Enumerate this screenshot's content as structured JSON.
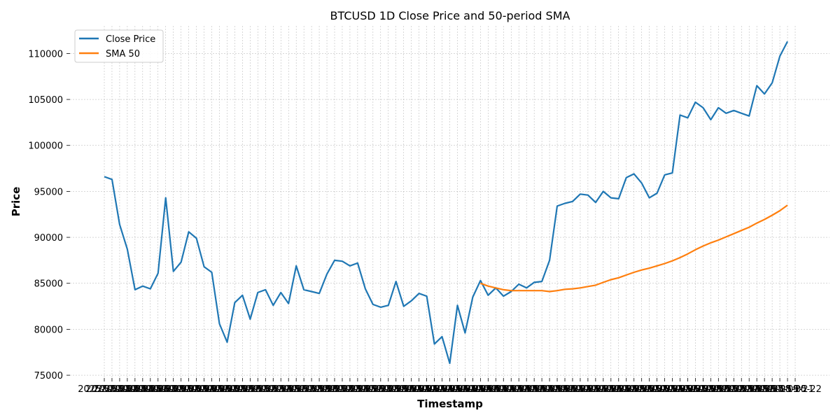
{
  "chart_data": {
    "type": "line",
    "title": "BTCUSD 1D Close Price and 50-period SMA",
    "xlabel": "Timestamp",
    "ylabel": "Price",
    "ylim": [
      74700,
      113000
    ],
    "yticks": [
      75000,
      80000,
      85000,
      90000,
      95000,
      100000,
      105000,
      110000
    ],
    "grid": true,
    "legend_position": "top-left",
    "colors": {
      "close": "#1f77b4",
      "sma": "#ff7f0e",
      "grid": "#b0b0b0"
    },
    "x": [
      "2025-02-21",
      "2025-02-22",
      "2025-02-23",
      "2025-02-24",
      "2025-02-25",
      "2025-02-26",
      "2025-02-27",
      "2025-02-28",
      "2025-03-01",
      "2025-03-02",
      "2025-03-03",
      "2025-03-04",
      "2025-03-05",
      "2025-03-06",
      "2025-03-07",
      "2025-03-08",
      "2025-03-09",
      "2025-03-10",
      "2025-03-11",
      "2025-03-12",
      "2025-03-13",
      "2025-03-14",
      "2025-03-15",
      "2025-03-16",
      "2025-03-17",
      "2025-03-18",
      "2025-03-19",
      "2025-03-20",
      "2025-03-21",
      "2025-03-22",
      "2025-03-23",
      "2025-03-24",
      "2025-03-25",
      "2025-03-26",
      "2025-03-27",
      "2025-03-28",
      "2025-03-29",
      "2025-03-30",
      "2025-03-31",
      "2025-04-01",
      "2025-04-02",
      "2025-04-03",
      "2025-04-04",
      "2025-04-05",
      "2025-04-06",
      "2025-04-07",
      "2025-04-08",
      "2025-04-09",
      "2025-04-10",
      "2025-04-11",
      "2025-04-12",
      "2025-04-13",
      "2025-04-14",
      "2025-04-15",
      "2025-04-16",
      "2025-04-17",
      "2025-04-18",
      "2025-04-19",
      "2025-04-20",
      "2025-04-21",
      "2025-04-22",
      "2025-04-23",
      "2025-04-24",
      "2025-04-25",
      "2025-04-26",
      "2025-04-27",
      "2025-04-28",
      "2025-04-29",
      "2025-04-30",
      "2025-05-01",
      "2025-05-02",
      "2025-05-03",
      "2025-05-04",
      "2025-05-05",
      "2025-05-06",
      "2025-05-07",
      "2025-05-08",
      "2025-05-09",
      "2025-05-10",
      "2025-05-11",
      "2025-05-12",
      "2025-05-13",
      "2025-05-14",
      "2025-05-15",
      "2025-05-16",
      "2025-05-17",
      "2025-05-18",
      "2025-05-19",
      "2025-05-20",
      "2025-05-21",
      "2025-05-22"
    ],
    "series": [
      {
        "name": "Close Price",
        "values": [
          96600,
          96300,
          91400,
          88700,
          84300,
          84700,
          84400,
          86100,
          94300,
          86300,
          87300,
          90600,
          89900,
          86800,
          86200,
          80600,
          78600,
          82900,
          83700,
          81100,
          84000,
          84300,
          82600,
          84000,
          82800,
          86900,
          84300,
          84100,
          83900,
          86000,
          87500,
          87400,
          86900,
          87200,
          84400,
          82700,
          82400,
          82600,
          85200,
          82500,
          83100,
          83900,
          83600,
          78400,
          79200,
          76300,
          82600,
          79600,
          83500,
          85300,
          83700,
          84500,
          83600,
          84100,
          84900,
          84500,
          85100,
          85200,
          87500,
          93400,
          93700,
          93900,
          94700,
          94600,
          93800,
          95000,
          94300,
          94200,
          96500,
          96900,
          95900,
          94300,
          94800,
          96800,
          97000,
          103300,
          103000,
          104700,
          104100,
          102800,
          104100,
          103500,
          103800,
          103500,
          103200,
          106500,
          105600,
          106800,
          109700,
          111300,
          null
        ],
        "color": "#1f77b4"
      },
      {
        "name": "SMA 50",
        "values": [
          null,
          null,
          null,
          null,
          null,
          null,
          null,
          null,
          null,
          null,
          null,
          null,
          null,
          null,
          null,
          null,
          null,
          null,
          null,
          null,
          null,
          null,
          null,
          null,
          null,
          null,
          null,
          null,
          null,
          null,
          null,
          null,
          null,
          null,
          null,
          null,
          null,
          null,
          null,
          null,
          null,
          null,
          null,
          null,
          null,
          null,
          null,
          null,
          null,
          85000,
          84700,
          84500,
          84300,
          84200,
          84200,
          84200,
          84200,
          84200,
          84100,
          84200,
          84350,
          84400,
          84500,
          84650,
          84800,
          85100,
          85400,
          85600,
          85900,
          86200,
          86450,
          86650,
          86900,
          87150,
          87450,
          87800,
          88200,
          88650,
          89050,
          89400,
          89700,
          90050,
          90400,
          90750,
          91100,
          91550,
          91950,
          92400,
          92900,
          93500,
          null
        ],
        "color": "#ff7f0e"
      }
    ]
  }
}
